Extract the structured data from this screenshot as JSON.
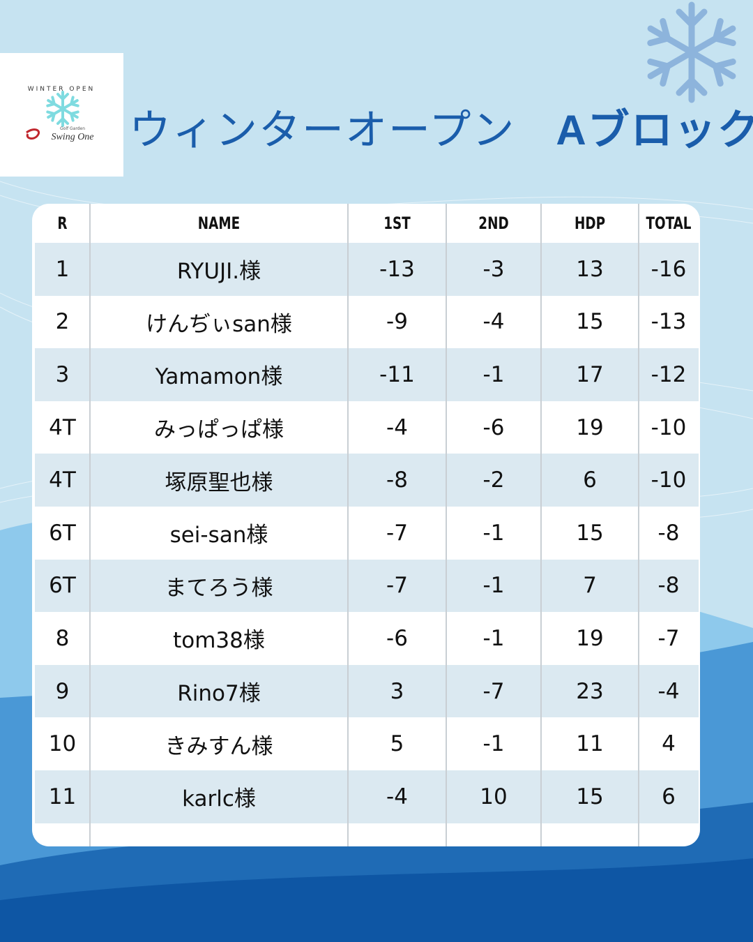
{
  "logo": {
    "event": "WINTER OPEN",
    "small": "Golf Garden",
    "brand": "Swing One"
  },
  "header": {
    "title": "ウィンターオープン",
    "block": "Aブロック"
  },
  "table": {
    "columns": [
      "R",
      "NAME",
      "1ST",
      "2ND",
      "HDP",
      "TOTAL"
    ],
    "rows": [
      [
        1,
        "RYUJI.様",
        -13,
        -3,
        13,
        -16
      ],
      [
        2,
        "けんぢぃsan様",
        -9,
        -4,
        15,
        -13
      ],
      [
        3,
        "Yamamon様",
        -11,
        -1,
        17,
        -12
      ],
      [
        "4T",
        "みっぱっぱ様",
        -4,
        -6,
        19,
        -10
      ],
      [
        "4T",
        "塚原聖也様",
        -8,
        -2,
        6,
        -10
      ],
      [
        "6T",
        "sei-san様",
        -7,
        -1,
        15,
        -8
      ],
      [
        "6T",
        "まてろう様",
        -7,
        -1,
        7,
        -8
      ],
      [
        8,
        "tom38様",
        -6,
        -1,
        19,
        -7
      ],
      [
        9,
        "Rino7様",
        3,
        -7,
        23,
        -4
      ],
      [
        10,
        "きみすん様",
        5,
        -1,
        11,
        4
      ],
      [
        11,
        "karlc様",
        -4,
        10,
        15,
        6
      ]
    ]
  }
}
